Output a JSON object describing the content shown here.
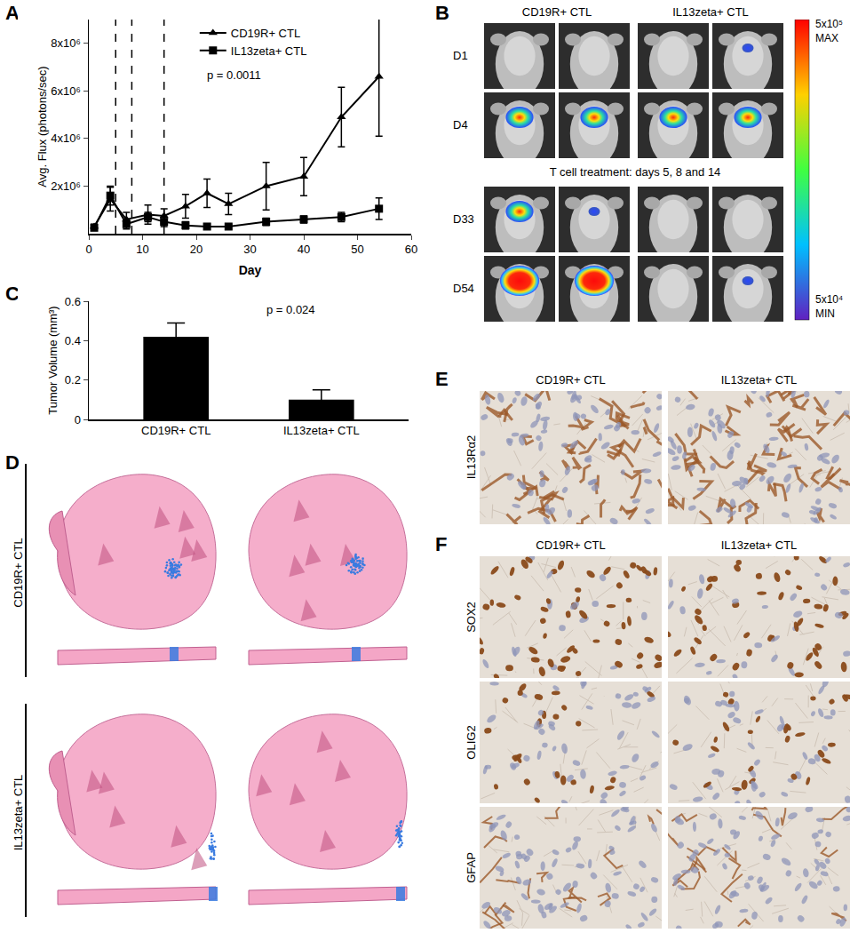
{
  "chart_data": [
    {
      "panel": "A",
      "type": "line",
      "x_label": "Day",
      "y_label": "Avg. Flux (photons/sec)",
      "annotations": [
        "p = 0.0011"
      ],
      "x": [
        1,
        4,
        7,
        11,
        14,
        18,
        22,
        26,
        33,
        40,
        47,
        54
      ],
      "series": [
        {
          "name": "CD19R+ CTL",
          "color": "#000000",
          "marker": "triangle-up",
          "values": [
            300000,
            1450000,
            600000,
            800000,
            750000,
            1150000,
            1700000,
            1250000,
            2000000,
            2400000,
            4900000,
            6600000
          ],
          "error": [
            100000,
            500000,
            300000,
            400000,
            300000,
            500000,
            600000,
            450000,
            1000000,
            800000,
            1250000,
            2500000
          ]
        },
        {
          "name": "IL13zeta+ CTL",
          "color": "#000000",
          "marker": "square",
          "values": [
            250000,
            1600000,
            400000,
            700000,
            500000,
            350000,
            300000,
            300000,
            500000,
            600000,
            700000,
            1050000
          ],
          "error": [
            50000,
            400000,
            200000,
            200000,
            200000,
            150000,
            100000,
            100000,
            150000,
            150000,
            200000,
            450000
          ]
        }
      ],
      "treatment_days": [
        5,
        8,
        14
      ],
      "xlim": [
        0,
        60
      ],
      "xticks": [
        0,
        10,
        20,
        30,
        40,
        50,
        60
      ],
      "ylim": [
        0,
        9000000
      ],
      "yticks": [
        {
          "value": 2000000,
          "label": "2x10⁶"
        },
        {
          "value": 4000000,
          "label": "4x10⁶"
        },
        {
          "value": 6000000,
          "label": "6x10⁶"
        },
        {
          "value": 8000000,
          "label": "8x10⁶"
        }
      ],
      "legend": "top"
    },
    {
      "panel": "C",
      "type": "bar",
      "y_label": "Tumor Volume (mm³)",
      "annotations": [
        "p = 0.024"
      ],
      "categories": [
        "CD19R+ CTL",
        "IL13zeta+ CTL"
      ],
      "values": [
        0.42,
        0.1
      ],
      "error": [
        0.07,
        0.05
      ],
      "color": "#000000",
      "ylim": [
        0,
        0.6
      ],
      "yticks": [
        0,
        0.2,
        0.4,
        0.6
      ]
    }
  ],
  "panel_b": {
    "panel": "B",
    "columns": [
      "CD19R+ CTL",
      "IL13zeta+ CTL"
    ],
    "rows": [
      "D1",
      "D4",
      "D33",
      "D54"
    ],
    "note": "T cell treatment: days 5, 8 and 14",
    "colorbar": {
      "max": "5x10⁵",
      "max_label": "MAX",
      "min": "5x10⁴",
      "min_label": "MIN"
    }
  },
  "panel_d": {
    "panel": "D",
    "rows": [
      "CD19R+ CTL",
      "IL13zeta+ CTL"
    ]
  },
  "panel_e": {
    "panel": "E",
    "columns": [
      "CD19R+ CTL",
      "IL13zeta+ CTL"
    ],
    "rows": [
      "IL13Rα2"
    ]
  },
  "panel_f": {
    "panel": "F",
    "columns": [
      "CD19R+ CTL",
      "IL13zeta+ CTL"
    ],
    "rows": [
      "SOX2",
      "OLIG2",
      "GFAP"
    ]
  }
}
